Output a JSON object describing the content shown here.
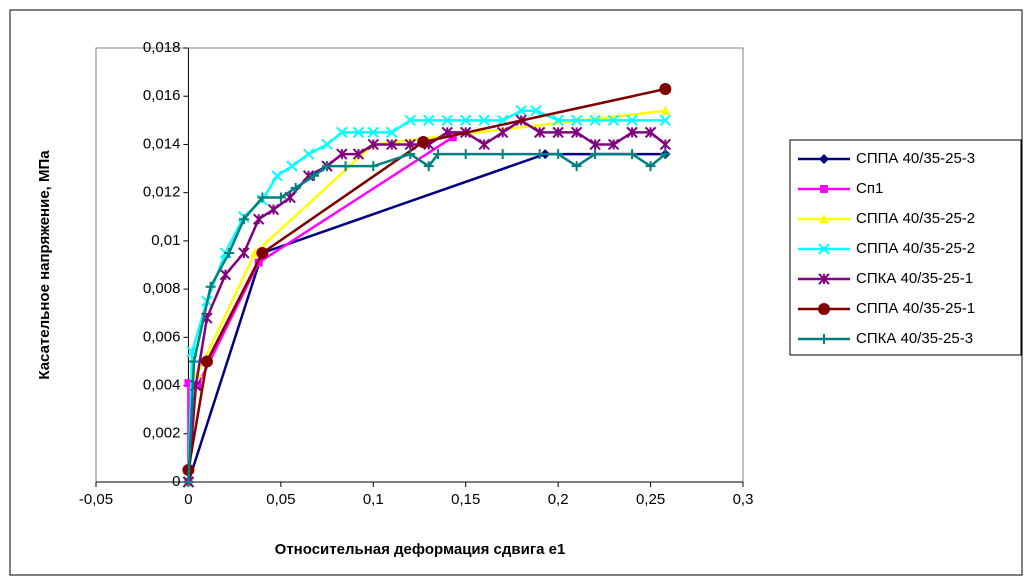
{
  "chart_data": {
    "type": "line",
    "x_label": "Относительная деформация сдвига e1",
    "y_label": "Касательное напряжение, МПа",
    "xlim": [
      -0.05,
      0.3
    ],
    "xticks": [
      {
        "value": -0.05,
        "label": "-0,05"
      },
      0,
      {
        "value": 0.05,
        "label": "0,05"
      },
      {
        "value": 0.1,
        "label": "0,1"
      },
      {
        "value": 0.15,
        "label": "0,15"
      },
      {
        "value": 0.2,
        "label": "0,2"
      },
      {
        "value": 0.25,
        "label": "0,25"
      },
      {
        "value": 0.3,
        "label": "0,3"
      }
    ],
    "ylim": [
      0,
      0.018
    ],
    "yticks": [
      0,
      {
        "value": 0.002,
        "label": "0,002"
      },
      {
        "value": 0.004,
        "label": "0,004"
      },
      {
        "value": 0.006,
        "label": "0,006"
      },
      {
        "value": 0.008,
        "label": "0,008"
      },
      {
        "value": 0.01,
        "label": "0,01"
      },
      {
        "value": 0.012,
        "label": "0,012"
      },
      {
        "value": 0.014,
        "label": "0,014"
      },
      {
        "value": 0.016,
        "label": "0,016"
      },
      {
        "value": 0.018,
        "label": "0,018"
      }
    ],
    "legend": "right",
    "series": [
      {
        "name": "СППА 40/35-25-3",
        "color": "#000080",
        "marker": "diamond",
        "x": [
          0,
          0.04,
          0.193,
          0.258
        ],
        "values": [
          0,
          0.0095,
          0.0136,
          0.0136
        ]
      },
      {
        "name": "Сп1",
        "color": "#ff00ff",
        "marker": "square",
        "x": [
          0,
          0,
          0.005,
          0.038,
          0.143
        ],
        "values": [
          0,
          0.0041,
          0.004,
          0.0091,
          0.0143
        ]
      },
      {
        "name": "СППА 40/35-25-2",
        "color": "#ffff00",
        "marker": "triangle",
        "x": [
          0,
          0.005,
          0.036,
          0.1,
          0.258
        ],
        "values": [
          0,
          0.0045,
          0.0095,
          0.014,
          0.0154
        ]
      },
      {
        "name": "СППА 40/35-25-2",
        "color": "#00ffff",
        "marker": "cross",
        "x": [
          0,
          0.002,
          0.01,
          0.02,
          0.03,
          0.04,
          0.048,
          0.056,
          0.065,
          0.075,
          0.083,
          0.092,
          0.1,
          0.11,
          0.12,
          0.13,
          0.14,
          0.15,
          0.16,
          0.17,
          0.18,
          0.188,
          0.2,
          0.21,
          0.22,
          0.23,
          0.24,
          0.258
        ],
        "values": [
          0,
          0.0054,
          0.0075,
          0.0095,
          0.011,
          0.0117,
          0.0127,
          0.0131,
          0.0136,
          0.014,
          0.0145,
          0.0145,
          0.0145,
          0.0145,
          0.015,
          0.015,
          0.015,
          0.015,
          0.015,
          0.015,
          0.0154,
          0.0154,
          0.015,
          0.015,
          0.015,
          0.015,
          0.015,
          0.015
        ]
      },
      {
        "name": "СПКА 40/35-25-1",
        "color": "#800080",
        "marker": "star",
        "x": [
          0,
          0.004,
          0.01,
          0.02,
          0.03,
          0.038,
          0.046,
          0.055,
          0.065,
          0.075,
          0.083,
          0.092,
          0.1,
          0.11,
          0.12,
          0.13,
          0.14,
          0.15,
          0.16,
          0.17,
          0.18,
          0.19,
          0.2,
          0.21,
          0.22,
          0.23,
          0.24,
          0.25,
          0.258
        ],
        "values": [
          0,
          0.004,
          0.0068,
          0.0086,
          0.0095,
          0.0109,
          0.0113,
          0.0118,
          0.0127,
          0.0131,
          0.0136,
          0.0136,
          0.014,
          0.014,
          0.014,
          0.014,
          0.0145,
          0.0145,
          0.014,
          0.0145,
          0.015,
          0.0145,
          0.0145,
          0.0145,
          0.014,
          0.014,
          0.0145,
          0.0145,
          0.014
        ]
      },
      {
        "name": "СППА 40/35-25-1",
        "color": "#800000",
        "marker": "circle",
        "x": [
          0,
          0.01,
          0.04,
          0.127,
          0.258
        ],
        "values": [
          0.0005,
          0.005,
          0.0095,
          0.0141,
          0.0163
        ]
      },
      {
        "name": "СПКА 40/35-25-3",
        "color": "#008080",
        "marker": "plus",
        "x": [
          0,
          0.003,
          0.012,
          0.022,
          0.03,
          0.04,
          0.05,
          0.058,
          0.068,
          0.075,
          0.085,
          0.1,
          0.12,
          0.13,
          0.135,
          0.15,
          0.17,
          0.19,
          0.2,
          0.21,
          0.22,
          0.24,
          0.25,
          0.258
        ],
        "values": [
          0,
          0.005,
          0.0081,
          0.0095,
          0.0109,
          0.0118,
          0.0118,
          0.0122,
          0.0127,
          0.0131,
          0.0131,
          0.0131,
          0.0136,
          0.0131,
          0.0136,
          0.0136,
          0.0136,
          0.0136,
          0.0136,
          0.0131,
          0.0136,
          0.0136,
          0.0131,
          0.0136
        ]
      }
    ]
  }
}
